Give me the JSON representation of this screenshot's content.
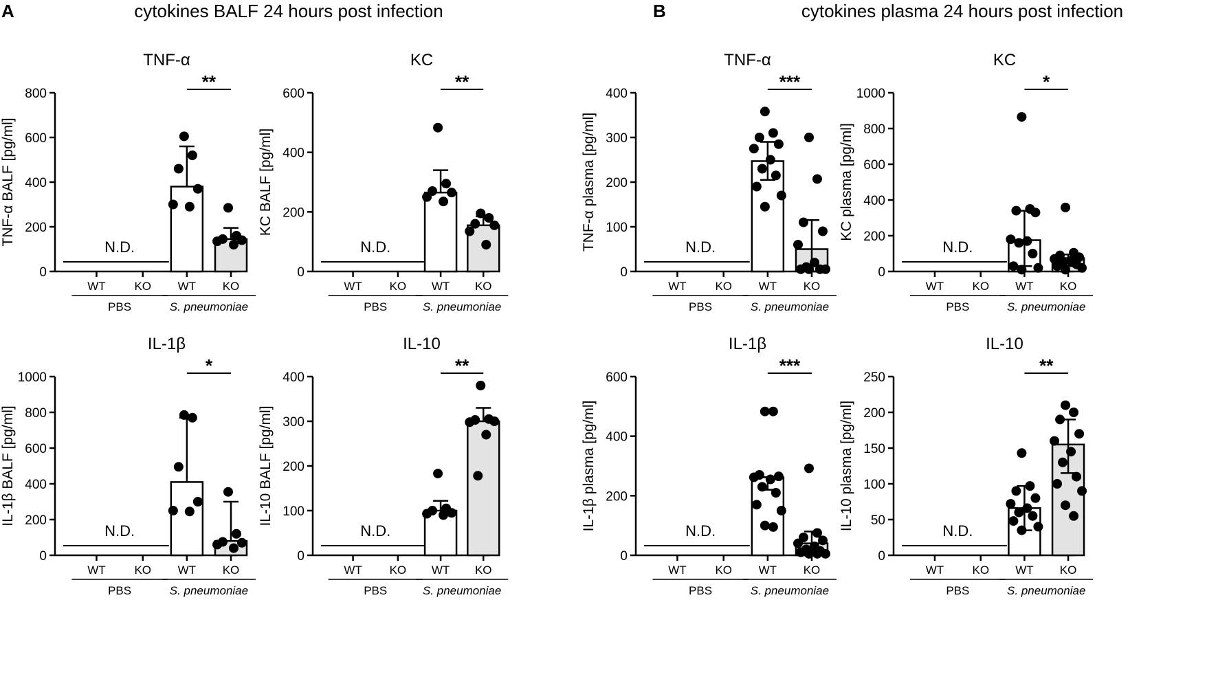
{
  "figure": {
    "panels": [
      {
        "letter": "A",
        "title": "cytokines BALF 24 hours post infection"
      },
      {
        "letter": "B",
        "title": "cytokines plasma 24 hours post infection"
      }
    ]
  },
  "chart_data": [
    {
      "id": "balf_tnf",
      "type": "bar",
      "title": "TNF-α",
      "ylabel": "TNF-α BALF [pg/ml]",
      "ylim": [
        0,
        800
      ],
      "yticks": [
        0,
        200,
        400,
        600,
        800
      ],
      "categories": [
        "WT",
        "KO",
        "WT",
        "KO"
      ],
      "groups": [
        "PBS",
        "S. pneumoniae"
      ],
      "not_detected": "N.D.",
      "significance": "**",
      "bars": [
        {
          "group": "S. pneumoniae",
          "category": "WT",
          "fill": "#ffffff",
          "value": 380,
          "err_low": 380,
          "err_high": 560,
          "points": [
            605,
            520,
            460,
            370,
            300,
            290
          ]
        },
        {
          "group": "S. pneumoniae",
          "category": "KO",
          "fill": "#e3e3e3",
          "value": 145,
          "err_low": 145,
          "err_high": 195,
          "points": [
            285,
            160,
            145,
            140,
            135,
            120
          ]
        }
      ]
    },
    {
      "id": "balf_kc",
      "type": "bar",
      "title": "KC",
      "ylabel": "KC BALF [pg/ml]",
      "ylim": [
        0,
        600
      ],
      "yticks": [
        0,
        200,
        400,
        600
      ],
      "categories": [
        "WT",
        "KO",
        "WT",
        "KO"
      ],
      "groups": [
        "PBS",
        "S. pneumoniae"
      ],
      "not_detected": "N.D.",
      "significance": "**",
      "bars": [
        {
          "group": "S. pneumoniae",
          "category": "WT",
          "fill": "#ffffff",
          "value": 265,
          "err_low": 265,
          "err_high": 340,
          "points": [
            483,
            295,
            270,
            265,
            250,
            235
          ]
        },
        {
          "group": "S. pneumoniae",
          "category": "KO",
          "fill": "#e3e3e3",
          "value": 155,
          "err_low": 155,
          "err_high": 185,
          "points": [
            195,
            180,
            160,
            155,
            135,
            90
          ]
        }
      ]
    },
    {
      "id": "plasma_tnf",
      "type": "bar",
      "title": "TNF-α",
      "ylabel": "TNF-α plasma [pg/ml]",
      "ylim": [
        0,
        400
      ],
      "yticks": [
        0,
        100,
        200,
        300,
        400
      ],
      "categories": [
        "WT",
        "KO",
        "WT",
        "KO"
      ],
      "groups": [
        "PBS",
        "S. pneumoniae"
      ],
      "not_detected": "N.D.",
      "significance": "***",
      "bars": [
        {
          "group": "S. pneumoniae",
          "category": "WT",
          "fill": "#ffffff",
          "value": 247,
          "err_low": 205,
          "err_high": 290,
          "points": [
            358,
            310,
            300,
            285,
            275,
            250,
            230,
            215,
            190,
            170,
            145
          ]
        },
        {
          "group": "S. pneumoniae",
          "category": "KO",
          "fill": "#e3e3e3",
          "value": 50,
          "err_low": 0,
          "err_high": 115,
          "points": [
            300,
            207,
            110,
            90,
            60,
            20,
            10,
            5,
            5,
            5,
            5
          ]
        }
      ]
    },
    {
      "id": "plasma_kc",
      "type": "bar",
      "title": "KC",
      "ylabel": "KC plasma [pg/ml]",
      "ylim": [
        0,
        1000
      ],
      "yticks": [
        0,
        200,
        400,
        600,
        800,
        1000
      ],
      "categories": [
        "WT",
        "KO",
        "WT",
        "KO"
      ],
      "groups": [
        "PBS",
        "S. pneumoniae"
      ],
      "not_detected": "N.D.",
      "significance": "*",
      "bars": [
        {
          "group": "S. pneumoniae",
          "category": "WT",
          "fill": "#ffffff",
          "value": 175,
          "err_low": 30,
          "err_high": 340,
          "points": [
            865,
            350,
            340,
            330,
            180,
            170,
            160,
            100,
            30,
            20,
            10
          ]
        },
        {
          "group": "S. pneumoniae",
          "category": "KO",
          "fill": "#e3e3e3",
          "value": 75,
          "err_low": 30,
          "err_high": 95,
          "points": [
            358,
            105,
            90,
            80,
            70,
            60,
            50,
            40,
            30,
            20,
            10
          ]
        }
      ]
    },
    {
      "id": "balf_il1b",
      "type": "bar",
      "title": "IL-1β",
      "ylabel": "IL-1β BALF [pg/ml]",
      "ylim": [
        0,
        1000
      ],
      "yticks": [
        0,
        200,
        400,
        600,
        800,
        1000
      ],
      "categories": [
        "WT",
        "KO",
        "WT",
        "KO"
      ],
      "groups": [
        "PBS",
        "S. pneumoniae"
      ],
      "not_detected": "N.D.",
      "significance": "*",
      "bars": [
        {
          "group": "S. pneumoniae",
          "category": "WT",
          "fill": "#ffffff",
          "value": 410,
          "err_low": 410,
          "err_high": 770,
          "points": [
            785,
            770,
            495,
            300,
            250,
            245
          ]
        },
        {
          "group": "S. pneumoniae",
          "category": "KO",
          "fill": "#e3e3e3",
          "value": 80,
          "err_low": 80,
          "err_high": 300,
          "points": [
            355,
            120,
            75,
            70,
            60,
            40
          ]
        }
      ]
    },
    {
      "id": "balf_il10",
      "type": "bar",
      "title": "IL-10",
      "ylabel": "IL-10 BALF [pg/ml]",
      "ylim": [
        0,
        400
      ],
      "yticks": [
        0,
        100,
        200,
        300,
        400
      ],
      "categories": [
        "WT",
        "KO",
        "WT",
        "KO"
      ],
      "groups": [
        "PBS",
        "S. pneumoniae"
      ],
      "not_detected": "N.D.",
      "significance": "**",
      "bars": [
        {
          "group": "S. pneumoniae",
          "category": "WT",
          "fill": "#ffffff",
          "value": 100,
          "err_low": 100,
          "err_high": 122,
          "points": [
            183,
            105,
            100,
            95,
            93,
            90
          ]
        },
        {
          "group": "S. pneumoniae",
          "category": "KO",
          "fill": "#e3e3e3",
          "value": 300,
          "err_low": 300,
          "err_high": 330,
          "points": [
            380,
            305,
            303,
            300,
            298,
            270,
            178
          ]
        }
      ]
    },
    {
      "id": "plasma_il1b",
      "type": "bar",
      "title": "IL-1β",
      "ylabel": "IL-1β plasma [pg/ml]",
      "ylim": [
        0,
        600
      ],
      "yticks": [
        0,
        200,
        400,
        600
      ],
      "categories": [
        "WT",
        "KO",
        "WT",
        "KO"
      ],
      "groups": [
        "PBS",
        "S. pneumoniae"
      ],
      "not_detected": "N.D.",
      "significance": "***",
      "bars": [
        {
          "group": "S. pneumoniae",
          "category": "WT",
          "fill": "#ffffff",
          "value": 262,
          "err_low": 220,
          "err_high": 262,
          "points": [
            483,
            483,
            270,
            265,
            262,
            255,
            230,
            210,
            170,
            150,
            100,
            95
          ]
        },
        {
          "group": "S. pneumoniae",
          "category": "KO",
          "fill": "#e3e3e3",
          "value": 40,
          "err_low": 0,
          "err_high": 80,
          "points": [
            292,
            75,
            60,
            50,
            40,
            30,
            20,
            15,
            10,
            5,
            5,
            5
          ]
        }
      ]
    },
    {
      "id": "plasma_il10",
      "type": "bar",
      "title": "IL-10",
      "ylabel": "IL-10 plasma [pg/ml]",
      "ylim": [
        0,
        250
      ],
      "yticks": [
        0,
        50,
        100,
        150,
        200,
        250
      ],
      "categories": [
        "WT",
        "KO",
        "WT",
        "KO"
      ],
      "groups": [
        "PBS",
        "S. pneumoniae"
      ],
      "not_detected": "N.D.",
      "significance": "**",
      "bars": [
        {
          "group": "S. pneumoniae",
          "category": "WT",
          "fill": "#ffffff",
          "value": 66,
          "err_low": 35,
          "err_high": 97,
          "points": [
            143,
            97,
            90,
            80,
            72,
            66,
            60,
            55,
            48,
            40,
            35
          ]
        },
        {
          "group": "S. pneumoniae",
          "category": "KO",
          "fill": "#e3e3e3",
          "value": 155,
          "err_low": 115,
          "err_high": 190,
          "points": [
            210,
            200,
            190,
            170,
            160,
            145,
            130,
            110,
            100,
            90,
            70,
            55
          ]
        }
      ]
    }
  ]
}
